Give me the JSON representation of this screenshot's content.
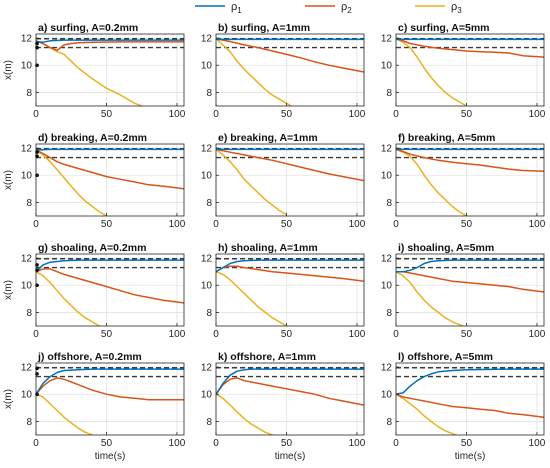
{
  "legend": {
    "placement": "top-center",
    "entries": [
      {
        "label": "ρ",
        "sub": "1",
        "color": "#0072BD"
      },
      {
        "label": "ρ",
        "sub": "2",
        "color": "#D95319"
      },
      {
        "label": "ρ",
        "sub": "3",
        "color": "#EDB120"
      }
    ]
  },
  "shared": {
    "xlabel": "time(s)",
    "ylabel": "x(m)",
    "xlim": [
      0,
      105
    ],
    "ylim": [
      7,
      12.3
    ],
    "xticks": [
      0,
      50,
      100
    ],
    "yticks": [
      8,
      10,
      12
    ],
    "grid": true,
    "reference_lines": [
      {
        "y": 11.95,
        "color": "#3a3a3a",
        "style": "dashed"
      },
      {
        "y": 11.3,
        "color": "#3a3a3a",
        "style": "dashed"
      }
    ]
  },
  "chart_data": [
    {
      "type": "line",
      "title": "a) surfing, A=0.2mm",
      "series": [
        {
          "x": [
            0,
            5,
            10,
            20,
            40,
            60,
            80,
            105
          ],
          "y": [
            11.75,
            11.7,
            11.8,
            11.85,
            11.85,
            11.85,
            11.85,
            11.85
          ]
        },
        {
          "x": [
            0,
            5,
            10,
            15,
            20,
            25,
            30,
            40,
            60,
            80,
            105
          ],
          "y": [
            11.8,
            11.6,
            11.3,
            11.1,
            11.5,
            11.6,
            11.65,
            11.7,
            11.72,
            11.72,
            11.72
          ]
        },
        {
          "x": [
            0,
            5,
            10,
            15,
            20,
            25,
            30,
            40,
            50,
            60,
            70,
            80
          ],
          "y": [
            11.8,
            11.6,
            11.3,
            11,
            10.8,
            10.3,
            9.8,
            9,
            8.3,
            7.8,
            7.2,
            6.8
          ]
        }
      ],
      "points": {
        "x": [
          0,
          0,
          0
        ],
        "y": [
          11.6,
          11.3,
          10.0
        ]
      }
    },
    {
      "type": "line",
      "title": "b) surfing, A=1mm",
      "series": [
        {
          "x": [
            0,
            20,
            50,
            80,
            105
          ],
          "y": [
            11.9,
            11.9,
            11.9,
            11.9,
            11.9
          ]
        },
        {
          "x": [
            0,
            10,
            20,
            30,
            40,
            50,
            60,
            70,
            80,
            90,
            105
          ],
          "y": [
            11.95,
            11.75,
            11.5,
            11.3,
            11.05,
            10.8,
            10.55,
            10.25,
            10.0,
            9.8,
            9.5
          ]
        },
        {
          "x": [
            0,
            5,
            10,
            15,
            20,
            25,
            30,
            35,
            40,
            45,
            50,
            55
          ],
          "y": [
            11.95,
            11.5,
            11.0,
            10.3,
            9.7,
            9.2,
            8.7,
            8.2,
            7.8,
            7.5,
            7.2,
            6.9
          ]
        }
      ]
    },
    {
      "type": "line",
      "title": "c) surfing, A=5mm",
      "series": [
        {
          "x": [
            0,
            20,
            50,
            80,
            105
          ],
          "y": [
            11.9,
            11.9,
            11.9,
            11.9,
            11.9
          ]
        },
        {
          "x": [
            0,
            5,
            10,
            20,
            30,
            40,
            50,
            60,
            70,
            80,
            90,
            105
          ],
          "y": [
            11.95,
            11.8,
            11.6,
            11.4,
            11.25,
            11.15,
            11.05,
            11.0,
            10.95,
            10.9,
            10.7,
            10.6
          ]
        },
        {
          "x": [
            0,
            5,
            10,
            15,
            20,
            25,
            30,
            35,
            40,
            45,
            50
          ],
          "y": [
            11.95,
            11.7,
            11.3,
            10.6,
            9.8,
            9.1,
            8.5,
            8.0,
            7.6,
            7.3,
            7.0
          ]
        }
      ]
    },
    {
      "type": "line",
      "title": "d) breaking, A=0.2mm",
      "series": [
        {
          "x": [
            0,
            10,
            20,
            40,
            60,
            80,
            105
          ],
          "y": [
            11.85,
            11.9,
            11.9,
            11.9,
            11.9,
            11.9,
            11.9
          ]
        },
        {
          "x": [
            0,
            5,
            10,
            15,
            20,
            30,
            40,
            50,
            60,
            70,
            80,
            90,
            105
          ],
          "y": [
            11.85,
            11.6,
            11.3,
            11.0,
            10.8,
            10.5,
            10.2,
            9.9,
            9.7,
            9.5,
            9.3,
            9.2,
            9.0
          ]
        },
        {
          "x": [
            0,
            5,
            10,
            15,
            20,
            25,
            30,
            35,
            40,
            45,
            50
          ],
          "y": [
            11.85,
            11.5,
            11.0,
            10.4,
            9.8,
            9.2,
            8.6,
            8.1,
            7.7,
            7.3,
            7.0
          ]
        }
      ],
      "points": {
        "x": [
          0,
          0,
          0
        ],
        "y": [
          11.7,
          11.4,
          10.0
        ]
      }
    },
    {
      "type": "line",
      "title": "e) breaking, A=1mm",
      "series": [
        {
          "x": [
            0,
            20,
            50,
            80,
            105
          ],
          "y": [
            11.9,
            11.9,
            11.9,
            11.9,
            11.9
          ]
        },
        {
          "x": [
            0,
            10,
            20,
            30,
            40,
            50,
            60,
            70,
            80,
            90,
            105
          ],
          "y": [
            11.9,
            11.7,
            11.5,
            11.3,
            11.1,
            10.85,
            10.6,
            10.35,
            10.1,
            9.9,
            9.6
          ]
        },
        {
          "x": [
            0,
            5,
            10,
            15,
            20,
            25,
            30,
            35,
            40,
            45,
            50
          ],
          "y": [
            11.9,
            11.5,
            11.0,
            10.4,
            9.7,
            9.2,
            8.7,
            8.2,
            7.8,
            7.4,
            7.1
          ]
        }
      ]
    },
    {
      "type": "line",
      "title": "f) breaking, A=5mm",
      "series": [
        {
          "x": [
            0,
            20,
            50,
            80,
            105
          ],
          "y": [
            11.9,
            11.9,
            11.9,
            11.9,
            11.9
          ]
        },
        {
          "x": [
            0,
            5,
            10,
            20,
            30,
            40,
            50,
            60,
            70,
            80,
            90,
            105
          ],
          "y": [
            11.9,
            11.75,
            11.55,
            11.3,
            11.1,
            10.95,
            10.85,
            10.75,
            10.6,
            10.45,
            10.35,
            10.3
          ]
        },
        {
          "x": [
            0,
            5,
            10,
            15,
            20,
            25,
            30,
            35,
            40,
            45,
            50
          ],
          "y": [
            11.9,
            11.7,
            11.4,
            10.8,
            10.0,
            9.3,
            8.7,
            8.2,
            7.7,
            7.3,
            7.0
          ]
        }
      ]
    },
    {
      "type": "line",
      "title": "g) shoaling, A=0.2mm",
      "series": [
        {
          "x": [
            0,
            5,
            10,
            20,
            30,
            50,
            80,
            105
          ],
          "y": [
            11.0,
            11.5,
            11.7,
            11.8,
            11.85,
            11.85,
            11.85,
            11.85
          ]
        },
        {
          "x": [
            0,
            5,
            10,
            15,
            20,
            30,
            40,
            50,
            60,
            70,
            80,
            90,
            105
          ],
          "y": [
            11.0,
            11.2,
            11.2,
            11.0,
            10.8,
            10.5,
            10.2,
            9.9,
            9.6,
            9.3,
            9.1,
            8.9,
            8.7
          ]
        },
        {
          "x": [
            0,
            5,
            10,
            15,
            20,
            25,
            30,
            35,
            40,
            45,
            50
          ],
          "y": [
            11.0,
            10.7,
            10.2,
            9.6,
            9.0,
            8.5,
            8.0,
            7.6,
            7.3,
            7.0,
            6.9
          ]
        }
      ],
      "points": {
        "x": [
          0,
          0,
          0
        ],
        "y": [
          11.5,
          11.1,
          10.0
        ]
      }
    },
    {
      "type": "line",
      "title": "h) shoaling, A=1mm",
      "series": [
        {
          "x": [
            0,
            5,
            10,
            15,
            20,
            30,
            50,
            80,
            105
          ],
          "y": [
            11.0,
            11.3,
            11.6,
            11.75,
            11.8,
            11.85,
            11.85,
            11.85,
            11.85
          ]
        },
        {
          "x": [
            0,
            5,
            10,
            15,
            20,
            30,
            40,
            50,
            60,
            70,
            80,
            90,
            105
          ],
          "y": [
            11.0,
            11.3,
            11.4,
            11.4,
            11.3,
            11.15,
            11.0,
            10.9,
            10.8,
            10.7,
            10.6,
            10.5,
            10.3
          ]
        },
        {
          "x": [
            0,
            5,
            10,
            15,
            20,
            25,
            30,
            35,
            40,
            45,
            50,
            55
          ],
          "y": [
            11.0,
            10.8,
            10.4,
            9.9,
            9.4,
            8.9,
            8.4,
            8.0,
            7.6,
            7.3,
            7.0,
            6.9
          ]
        }
      ]
    },
    {
      "type": "line",
      "title": "i) shoaling, A=5mm",
      "series": [
        {
          "x": [
            0,
            5,
            10,
            15,
            20,
            25,
            30,
            40,
            50,
            80,
            105
          ],
          "y": [
            11.0,
            11.0,
            11.1,
            11.3,
            11.6,
            11.75,
            11.8,
            11.85,
            11.85,
            11.85,
            11.85
          ]
        },
        {
          "x": [
            0,
            5,
            10,
            15,
            20,
            30,
            40,
            50,
            60,
            70,
            80,
            90,
            105
          ],
          "y": [
            11.0,
            11.0,
            10.9,
            10.8,
            10.7,
            10.5,
            10.3,
            10.2,
            10.1,
            10.0,
            9.9,
            9.7,
            9.5
          ]
        },
        {
          "x": [
            0,
            5,
            10,
            15,
            20,
            25,
            30,
            35,
            40,
            45,
            50
          ],
          "y": [
            11.0,
            10.7,
            10.2,
            9.5,
            8.9,
            8.4,
            8.0,
            7.6,
            7.3,
            7.1,
            6.9
          ]
        }
      ]
    },
    {
      "type": "line",
      "title": "j) offshore, A=0.2mm",
      "series": [
        {
          "x": [
            0,
            5,
            10,
            15,
            20,
            30,
            40,
            60,
            80,
            105
          ],
          "y": [
            10.0,
            10.8,
            11.3,
            11.6,
            11.75,
            11.8,
            11.85,
            11.85,
            11.85,
            11.85
          ]
        },
        {
          "x": [
            0,
            5,
            10,
            15,
            20,
            30,
            40,
            50,
            60,
            70,
            80,
            90,
            105
          ],
          "y": [
            10.0,
            10.6,
            11.0,
            11.2,
            11.1,
            10.7,
            10.3,
            10.0,
            9.8,
            9.7,
            9.6,
            9.6,
            9.6
          ]
        },
        {
          "x": [
            0,
            5,
            10,
            15,
            20,
            25,
            30,
            35,
            40,
            45
          ],
          "y": [
            10.0,
            9.8,
            9.3,
            8.8,
            8.3,
            7.9,
            7.5,
            7.2,
            7.0,
            6.9
          ]
        }
      ],
      "points": {
        "x": [
          0,
          0,
          0
        ],
        "y": [
          11.9,
          11.5,
          10.0
        ]
      }
    },
    {
      "type": "line",
      "title": "k) offshore, A=1mm",
      "series": [
        {
          "x": [
            0,
            5,
            10,
            15,
            20,
            25,
            30,
            40,
            60,
            80,
            105
          ],
          "y": [
            10.0,
            10.8,
            11.4,
            11.7,
            11.8,
            11.85,
            11.85,
            11.85,
            11.85,
            11.85,
            11.85
          ]
        },
        {
          "x": [
            0,
            5,
            10,
            15,
            20,
            30,
            40,
            50,
            60,
            70,
            80,
            90,
            105
          ],
          "y": [
            10.0,
            10.7,
            11.1,
            11.2,
            11.0,
            10.8,
            10.6,
            10.4,
            10.2,
            10.0,
            9.7,
            9.5,
            9.2
          ]
        },
        {
          "x": [
            0,
            5,
            10,
            15,
            20,
            25,
            30,
            35,
            40,
            45,
            50,
            55
          ],
          "y": [
            10.0,
            9.7,
            9.2,
            8.7,
            8.2,
            7.8,
            7.5,
            7.2,
            7.0,
            6.9,
            6.8,
            6.7
          ]
        }
      ]
    },
    {
      "type": "line",
      "title": "l) offshore, A=5mm",
      "series": [
        {
          "x": [
            0,
            5,
            10,
            15,
            20,
            25,
            30,
            40,
            50,
            80,
            105
          ],
          "y": [
            10.0,
            10.1,
            10.6,
            11.0,
            11.3,
            11.5,
            11.65,
            11.75,
            11.8,
            11.85,
            11.85
          ]
        },
        {
          "x": [
            0,
            5,
            10,
            15,
            20,
            30,
            40,
            50,
            60,
            70,
            80,
            90,
            105
          ],
          "y": [
            10.0,
            9.8,
            9.7,
            9.6,
            9.5,
            9.3,
            9.1,
            9.0,
            8.9,
            8.8,
            8.6,
            8.5,
            8.3
          ]
        },
        {
          "x": [
            0,
            5,
            10,
            15,
            20,
            25,
            30,
            35,
            40,
            45,
            50
          ],
          "y": [
            10.0,
            9.7,
            9.3,
            8.9,
            8.4,
            8.0,
            7.6,
            7.3,
            7.1,
            6.9,
            6.8
          ]
        }
      ]
    }
  ]
}
